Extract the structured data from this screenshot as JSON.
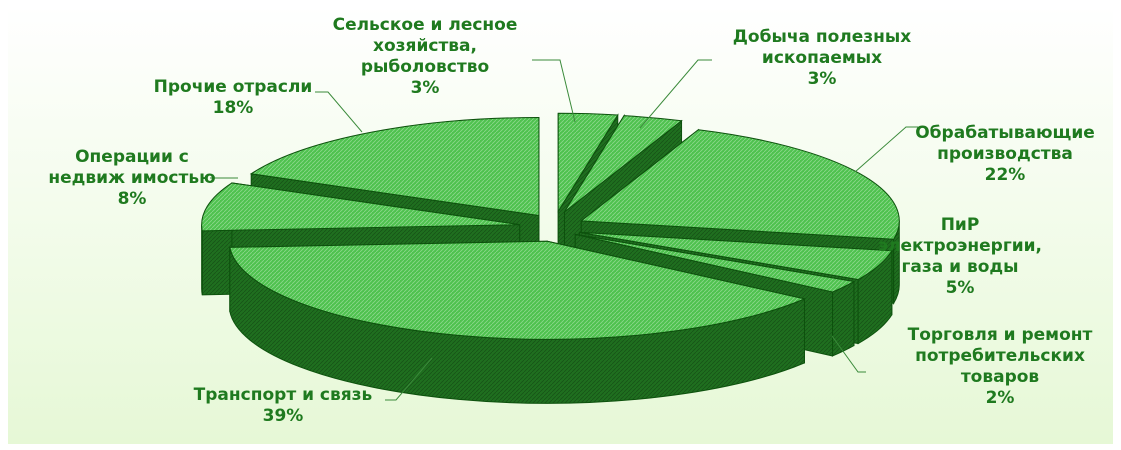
{
  "colors": {
    "background_top": "#ffffff",
    "background_bottom": "#e6f8d6",
    "slice_top": "#4fc24f",
    "slice_side": "#1f6f1f",
    "slice_edge": "#0d520d",
    "label": "#1f7a1f"
  },
  "chart_data": {
    "type": "pie",
    "variant": "3d-exploded",
    "unit": "%",
    "slices": [
      {
        "label_lines": [
          "Сельское и лесное",
          "хозяйства,",
          "рыболовство"
        ],
        "value": 3,
        "value_text": "3%"
      },
      {
        "label_lines": [
          "Добыча полезных",
          "ископаемых"
        ],
        "value": 3,
        "value_text": "3%"
      },
      {
        "label_lines": [
          "Обрабатывающие",
          "производства"
        ],
        "value": 22,
        "value_text": "22%"
      },
      {
        "label_lines": [
          "ПиР",
          "электроэнергии,",
          "газа и воды"
        ],
        "value": 5,
        "value_text": "5%"
      },
      {
        "label_lines": [
          "Торговля и ремонт",
          "потребительских",
          "товаров"
        ],
        "value": 2,
        "value_text": "2%"
      },
      {
        "label_lines": [
          "Транспорт и связь"
        ],
        "value": 39,
        "value_text": "39%"
      },
      {
        "label_lines": [
          "Операции с",
          "недвиж имостью"
        ],
        "value": 8,
        "value_text": "8%"
      },
      {
        "label_lines": [
          "Прочие отрасли"
        ],
        "value": 18,
        "value_text": "18%"
      }
    ]
  }
}
